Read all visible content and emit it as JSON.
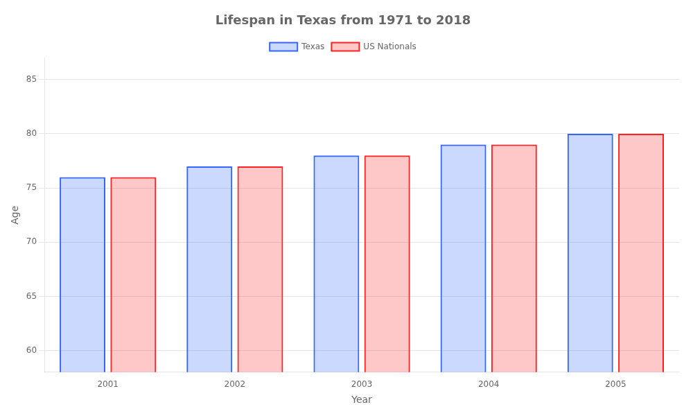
{
  "chart_data": {
    "type": "bar",
    "title": "Lifespan in Texas from 1971 to 2018",
    "x_label": "Year",
    "y_label": "Age",
    "categories": [
      "2001",
      "2002",
      "2003",
      "2004",
      "2005"
    ],
    "series": [
      {
        "name": "Texas",
        "color": "#3366ff",
        "values": [
          76.0,
          77.0,
          78.0,
          79.0,
          80.0
        ]
      },
      {
        "name": "US Nationals",
        "color": "#ff2222",
        "values": [
          76.0,
          77.0,
          78.0,
          79.0,
          80.0
        ]
      }
    ],
    "ylim": [
      58,
      87
    ],
    "yticks": [
      60,
      65,
      70,
      75,
      80,
      85
    ],
    "grid": true,
    "legend": "top"
  }
}
